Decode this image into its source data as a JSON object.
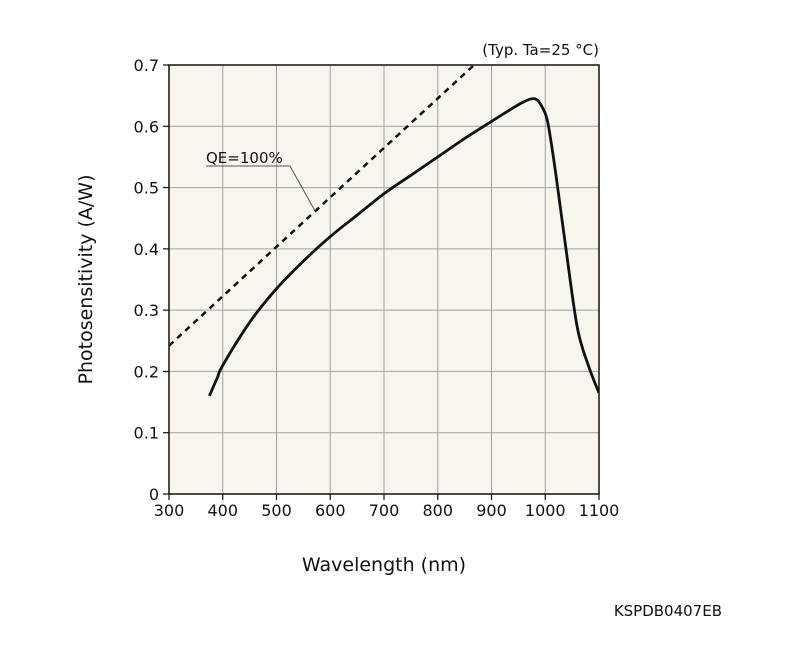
{
  "chart_data": {
    "type": "line",
    "title": "",
    "xlabel": "Wavelength (nm)",
    "ylabel": "Photosensitivity (A/W)",
    "xlim": [
      300,
      1100
    ],
    "ylim": [
      0,
      0.7
    ],
    "x_ticks": [
      300,
      400,
      500,
      600,
      700,
      800,
      900,
      1000,
      1100
    ],
    "y_ticks": [
      0,
      0.1,
      0.2,
      0.3,
      0.4,
      0.5,
      0.6,
      0.7
    ],
    "y_tick_labels": [
      "0",
      "0.1",
      "0.2",
      "0.3",
      "0.4",
      "0.5",
      "0.6",
      "0.7"
    ],
    "grid": true,
    "series": [
      {
        "name": "Photosensitivity",
        "style": "solid",
        "x": [
          375,
          390,
          400,
          450,
          500,
          550,
          600,
          650,
          700,
          750,
          800,
          850,
          900,
          940,
          960,
          975,
          985,
          995,
          1005,
          1020,
          1040,
          1060,
          1080,
          1100
        ],
        "y": [
          0.16,
          0.19,
          0.21,
          0.28,
          0.335,
          0.38,
          0.42,
          0.455,
          0.49,
          0.52,
          0.55,
          0.58,
          0.608,
          0.63,
          0.64,
          0.645,
          0.643,
          0.63,
          0.605,
          0.52,
          0.39,
          0.27,
          0.21,
          0.165
        ]
      },
      {
        "name": "QE=100%",
        "style": "dashed",
        "x": [
          300,
          875
        ],
        "y": [
          0.242,
          0.706
        ]
      }
    ],
    "annotations": [
      {
        "text": "QE=100%",
        "target_series": "QE=100%",
        "target_x": 572
      },
      {
        "text": "(Typ. Ta=25 °C)"
      }
    ]
  },
  "figure_code": "KSPDB0407EB",
  "colors": {
    "plot_background": "#f7f5ee",
    "grid": "#a0a0a0",
    "line": "#111111",
    "page_background": "#ffffff"
  }
}
